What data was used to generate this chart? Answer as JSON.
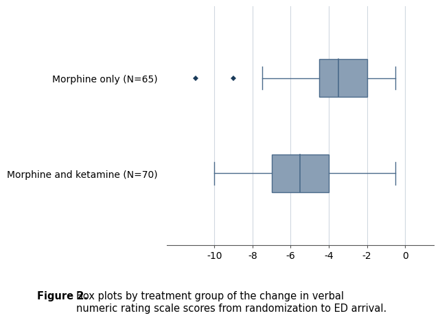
{
  "groups": [
    {
      "label": "Morphine only (N=65)",
      "whisker_low": -7.5,
      "q1": -4.5,
      "median": -3.5,
      "q3": -2.0,
      "whisker_high": -0.5,
      "outliers": [
        -11.0,
        -9.0
      ]
    },
    {
      "label": "Morphine and ketamine (N=70)",
      "whisker_low": -10.0,
      "q1": -7.0,
      "median": -5.5,
      "q3": -4.0,
      "whisker_high": -0.5,
      "outliers": []
    }
  ],
  "xlim": [
    -12.5,
    1.5
  ],
  "xticks": [
    -10,
    -8,
    -6,
    -4,
    -2,
    0
  ],
  "box_color": "#8a9fb5",
  "box_edge_color": "#4a6a8a",
  "median_color": "#4a6a8a",
  "whisker_color": "#4a6a8a",
  "outlier_color": "#1a3a5a",
  "background_color": "#ffffff",
  "grid_color": "#d0d8e0",
  "caption_bold": "Figure 2.",
  "caption_text": " Box plots by treatment group of the change in verbal\nnumeric rating scale scores from randomization to ED arrival.",
  "caption_fontsize": 10.5,
  "tick_fontsize": 10,
  "label_fontsize": 10
}
